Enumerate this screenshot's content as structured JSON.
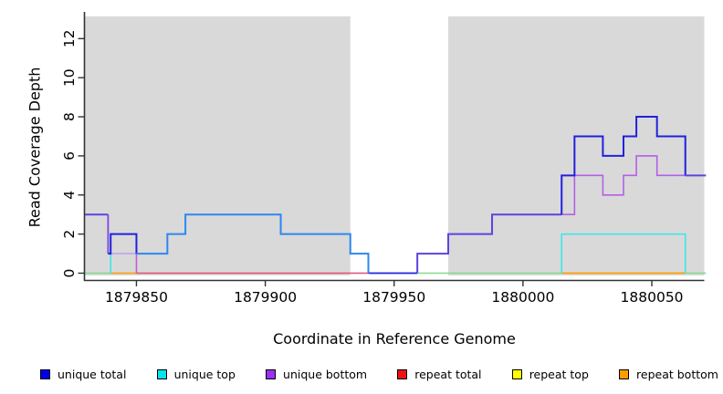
{
  "figure": {
    "xlabel": "Coordinate in Reference Genome",
    "ylabel": "Read Coverage Depth"
  },
  "axes": {
    "xticks": [
      {
        "value": 1879850,
        "label": "1879850"
      },
      {
        "value": 1879900,
        "label": "1879900"
      },
      {
        "value": 1879950,
        "label": "1879950"
      },
      {
        "value": 1880000,
        "label": "1880000"
      },
      {
        "value": 1880050,
        "label": "1880050"
      }
    ],
    "yticks": [
      {
        "value": 0,
        "label": "0"
      },
      {
        "value": 2,
        "label": "2"
      },
      {
        "value": 4,
        "label": "4"
      },
      {
        "value": 6,
        "label": "6"
      },
      {
        "value": 8,
        "label": "8"
      },
      {
        "value": 10,
        "label": "10"
      },
      {
        "value": 12,
        "label": "12"
      }
    ]
  },
  "legend": {
    "items": [
      {
        "label": "unique total",
        "color": "#0000ee"
      },
      {
        "label": "unique top",
        "color": "#00e5ee"
      },
      {
        "label": "unique bottom",
        "color": "#9a30f0"
      },
      {
        "label": "repeat total",
        "color": "#ee1111"
      },
      {
        "label": "repeat top",
        "color": "#ffff00"
      },
      {
        "label": "repeat bottom",
        "color": "#ff9d00"
      }
    ]
  },
  "chart_data": {
    "type": "line",
    "title": "",
    "xlabel": "Coordinate in Reference Genome",
    "ylabel": "Read Coverage Depth",
    "xlim": [
      1879830,
      1880071
    ],
    "ylim": [
      0,
      13.1
    ],
    "grid": false,
    "legend_position": "bottom",
    "panel_background": "#d9d9d9",
    "mask_region": {
      "from": 1879933,
      "to": 1879971,
      "color": "#ffffff"
    },
    "series": [
      {
        "name": "unique total",
        "color": "#2121dd",
        "steps": [
          [
            1879830,
            3
          ],
          [
            1879839,
            1
          ],
          [
            1879840,
            2
          ],
          [
            1879850,
            1
          ],
          [
            1879862,
            2
          ],
          [
            1879869,
            3
          ],
          [
            1879906,
            2
          ],
          [
            1879933,
            1
          ],
          [
            1879940,
            0
          ],
          [
            1879959,
            1
          ],
          [
            1879971,
            2
          ],
          [
            1879988,
            3
          ],
          [
            1880015,
            5
          ],
          [
            1880020,
            7
          ],
          [
            1880031,
            6
          ],
          [
            1880039,
            7
          ],
          [
            1880044,
            8
          ],
          [
            1880052,
            7
          ],
          [
            1880063,
            5
          ],
          [
            1880071,
            5
          ]
        ]
      },
      {
        "name": "unique top",
        "color": "#3fe5ea",
        "steps": [
          [
            1879830,
            0
          ],
          [
            1879840,
            1
          ],
          [
            1879862,
            2
          ],
          [
            1879869,
            3
          ],
          [
            1879906,
            2
          ],
          [
            1879933,
            1
          ],
          [
            1879940,
            0
          ],
          [
            1880015,
            2
          ],
          [
            1880063,
            0
          ],
          [
            1880071,
            0
          ]
        ]
      },
      {
        "name": "unique bottom",
        "color": "#b45fe6",
        "steps": [
          [
            1879830,
            3
          ],
          [
            1879839,
            1
          ],
          [
            1879850,
            0
          ],
          [
            1879959,
            1
          ],
          [
            1879971,
            2
          ],
          [
            1879988,
            3
          ],
          [
            1880020,
            5
          ],
          [
            1880031,
            4
          ],
          [
            1880039,
            5
          ],
          [
            1880044,
            6
          ],
          [
            1880052,
            5
          ],
          [
            1880071,
            5
          ]
        ]
      },
      {
        "name": "repeat total",
        "color": "#ee1111",
        "steps": [
          [
            1879830,
            0
          ],
          [
            1880071,
            0
          ]
        ]
      },
      {
        "name": "repeat top",
        "color": "#ffff00",
        "steps": [
          [
            1879830,
            0
          ],
          [
            1880071,
            0
          ]
        ]
      },
      {
        "name": "repeat bottom",
        "color": "#ff9d00",
        "steps": [
          [
            1879830,
            0
          ],
          [
            1880071,
            0
          ]
        ]
      }
    ],
    "visible_strokes": [
      {
        "name": "zero-green-left",
        "color": "#82d98f",
        "width": 1.6,
        "points": [
          [
            1879830,
            0
          ],
          [
            1879840,
            0
          ]
        ]
      },
      {
        "name": "zero-orange-left",
        "color": "#ff9d00",
        "width": 1.6,
        "points": [
          [
            1879840,
            0
          ],
          [
            1879850,
            0
          ]
        ]
      },
      {
        "name": "zero-red-mid",
        "color": "#e14f72",
        "width": 1.4,
        "points": [
          [
            1879850,
            0
          ],
          [
            1879940,
            0
          ]
        ]
      },
      {
        "name": "zero-blue-gap",
        "color": "#2121dd",
        "width": 1.8,
        "points": [
          [
            1879940,
            0
          ],
          [
            1879959,
            0
          ]
        ]
      },
      {
        "name": "zero-green-mid",
        "color": "#82d98f",
        "width": 1.6,
        "points": [
          [
            1879959,
            0
          ],
          [
            1880015,
            0
          ]
        ]
      },
      {
        "name": "zero-orange-right",
        "color": "#ff9d00",
        "width": 1.8,
        "points": [
          [
            1880015,
            0
          ],
          [
            1880063,
            0
          ]
        ]
      },
      {
        "name": "zero-green-right",
        "color": "#82d98f",
        "width": 1.6,
        "points": [
          [
            1880063,
            0
          ],
          [
            1880071,
            0
          ]
        ]
      },
      {
        "name": "lavender-left-1",
        "color": "#b9a6ec",
        "width": 1.6,
        "points": [
          [
            1879839,
            1
          ],
          [
            1879850,
            1
          ]
        ]
      },
      {
        "name": "cyan-left-drop",
        "color": "#3fe5ea",
        "width": 1.6,
        "points": [
          [
            1879840,
            1
          ],
          [
            1879840,
            0
          ]
        ]
      },
      {
        "name": "magenta-drop-1879850",
        "color": "#c35bd0",
        "width": 1.6,
        "points": [
          [
            1879850,
            1
          ],
          [
            1879850,
            0
          ]
        ]
      },
      {
        "name": "purple-left-drop",
        "color": "#7b47e0",
        "width": 1.8,
        "points": [
          [
            1879839,
            3
          ],
          [
            1879839,
            1
          ]
        ]
      },
      {
        "name": "violet-left-3",
        "color": "#5c44de",
        "width": 2.0,
        "points": [
          [
            1879830,
            3
          ],
          [
            1879839,
            3
          ]
        ]
      },
      {
        "name": "blue-left-box",
        "color": "#2121dd",
        "width": 2.0,
        "points": [
          [
            1879839,
            1
          ],
          [
            1879840,
            1
          ],
          [
            1879840,
            2
          ],
          [
            1879850,
            2
          ],
          [
            1879850,
            1
          ]
        ]
      },
      {
        "name": "lightblue-mid",
        "color": "#2d87f0",
        "width": 2.0,
        "points": [
          [
            1879850,
            1
          ],
          [
            1879862,
            1
          ],
          [
            1879862,
            2
          ],
          [
            1879869,
            2
          ],
          [
            1879869,
            3
          ],
          [
            1879906,
            3
          ],
          [
            1879906,
            2
          ],
          [
            1879933,
            2
          ],
          [
            1879933,
            1
          ],
          [
            1879940,
            1
          ],
          [
            1879940,
            0
          ]
        ]
      },
      {
        "name": "violet-rise-mid",
        "color": "#5c44de",
        "width": 2.0,
        "points": [
          [
            1879959,
            0
          ],
          [
            1879959,
            1
          ],
          [
            1879971,
            1
          ],
          [
            1879971,
            2
          ],
          [
            1879988,
            2
          ],
          [
            1879988,
            3
          ],
          [
            1880015,
            3
          ]
        ]
      },
      {
        "name": "cyan-right-box",
        "color": "#3fe5ea",
        "width": 1.6,
        "points": [
          [
            1880015,
            0
          ],
          [
            1880015,
            2
          ],
          [
            1880063,
            2
          ],
          [
            1880063,
            0
          ]
        ]
      },
      {
        "name": "orchid-right",
        "color": "#b45fe6",
        "width": 1.6,
        "points": [
          [
            1880015,
            3
          ],
          [
            1880020,
            3
          ],
          [
            1880020,
            5
          ],
          [
            1880031,
            5
          ],
          [
            1880031,
            4
          ],
          [
            1880039,
            4
          ],
          [
            1880039,
            5
          ],
          [
            1880044,
            5
          ],
          [
            1880044,
            6
          ],
          [
            1880052,
            6
          ],
          [
            1880052,
            5
          ],
          [
            1880063,
            5
          ]
        ]
      },
      {
        "name": "blue-right-steps",
        "color": "#2121dd",
        "width": 2.0,
        "points": [
          [
            1880015,
            3
          ],
          [
            1880015,
            5
          ],
          [
            1880020,
            5
          ],
          [
            1880020,
            7
          ],
          [
            1880031,
            7
          ],
          [
            1880031,
            6
          ],
          [
            1880039,
            6
          ],
          [
            1880039,
            7
          ],
          [
            1880044,
            7
          ],
          [
            1880044,
            8
          ],
          [
            1880052,
            8
          ],
          [
            1880052,
            7
          ],
          [
            1880063,
            7
          ],
          [
            1880063,
            5
          ]
        ]
      },
      {
        "name": "violet-right-tail",
        "color": "#5c44de",
        "width": 2.0,
        "points": [
          [
            1880063,
            5
          ],
          [
            1880071,
            5
          ]
        ]
      }
    ]
  }
}
